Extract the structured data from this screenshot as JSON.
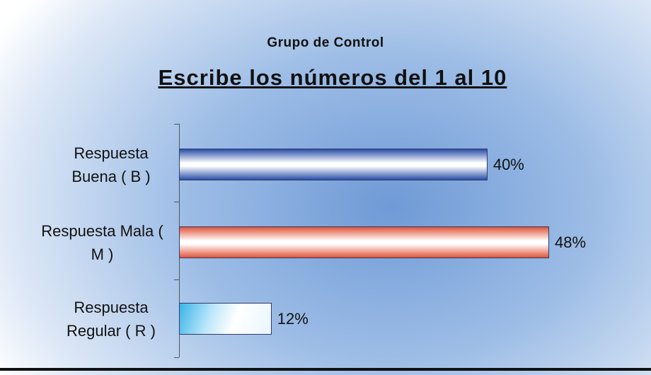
{
  "chart_data": {
    "type": "bar",
    "orientation": "horizontal",
    "title": "Grupo de Control",
    "subtitle": "Escribe los números del 1 al 10",
    "categories": [
      "Respuesta Buena ( B )",
      "Respuesta Mala ( M )",
      "Respuesta Regular ( R )"
    ],
    "values": [
      40,
      48,
      12
    ],
    "value_labels": [
      "40%",
      "48%",
      "12%"
    ],
    "colors": [
      "#2a4fa8",
      "#e0553a",
      "#3ab4e8"
    ]
  }
}
